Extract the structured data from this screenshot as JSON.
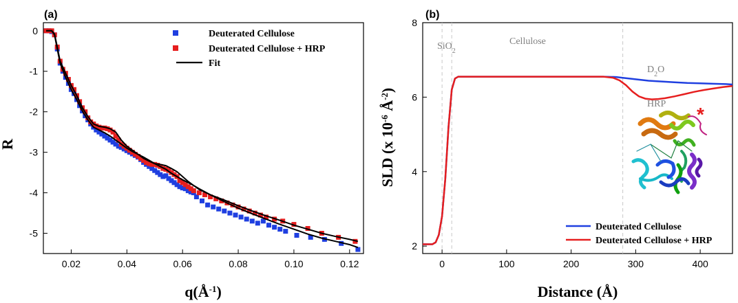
{
  "colors": {
    "blue": "#1f3fe0",
    "red": "#e61e1e",
    "black": "#000000",
    "grey": "#808080"
  },
  "panel_a": {
    "label": "(a)",
    "legend": {
      "series1": "Deuterated Cellulose",
      "series2": "Deuterated Cellulose + HRP",
      "fit": "Fit"
    }
  },
  "panel_b": {
    "label": "(b)",
    "annotations": {
      "sio2": "SiO",
      "sio2_sub": "2",
      "cellulose": "Cellulose",
      "d2o": "D",
      "d2o_sub": "2",
      "d2o_tail": "O",
      "hrp": "HRP",
      "asterisk": "*"
    },
    "legend": {
      "series1": "Deuterated Cellulose",
      "series2": "Deuterated Cellulose + HRP"
    },
    "protein_image": "protein-ribbon-structure"
  },
  "chart_data": [
    {
      "type": "scatter",
      "title": "",
      "xlabel": "q(Å-1)",
      "ylabel": "R",
      "xlim": [
        0.01,
        0.125
      ],
      "ylim": [
        -5.5,
        0.2
      ],
      "xticks": [
        0.02,
        0.04,
        0.06,
        0.08,
        0.1,
        0.12
      ],
      "xtick_labels": [
        "0.02",
        "0.04",
        "0.06",
        "0.08",
        "0.10",
        "0.12"
      ],
      "yticks": [
        0,
        -1,
        -2,
        -3,
        -4,
        -5
      ],
      "legend_position": "top-right",
      "series": [
        {
          "name": "Deuterated Cellulose",
          "marker": "square",
          "x": [
            0.011,
            0.012,
            0.013,
            0.014,
            0.015,
            0.016,
            0.017,
            0.018,
            0.019,
            0.02,
            0.021,
            0.022,
            0.023,
            0.024,
            0.025,
            0.026,
            0.027,
            0.028,
            0.029,
            0.03,
            0.031,
            0.032,
            0.033,
            0.034,
            0.035,
            0.036,
            0.037,
            0.038,
            0.039,
            0.04,
            0.041,
            0.042,
            0.043,
            0.044,
            0.045,
            0.046,
            0.047,
            0.048,
            0.049,
            0.05,
            0.051,
            0.052,
            0.053,
            0.054,
            0.055,
            0.056,
            0.057,
            0.058,
            0.059,
            0.06,
            0.061,
            0.062,
            0.063,
            0.064,
            0.065,
            0.067,
            0.069,
            0.071,
            0.073,
            0.075,
            0.077,
            0.079,
            0.081,
            0.083,
            0.085,
            0.087,
            0.089,
            0.091,
            0.093,
            0.095,
            0.097,
            0.101,
            0.106,
            0.111,
            0.117,
            0.123
          ],
          "y": [
            0.0,
            0.0,
            -0.02,
            -0.1,
            -0.45,
            -0.8,
            -1.0,
            -1.15,
            -1.3,
            -1.45,
            -1.55,
            -1.7,
            -1.85,
            -1.98,
            -2.1,
            -2.2,
            -2.3,
            -2.38,
            -2.45,
            -2.5,
            -2.55,
            -2.6,
            -2.65,
            -2.7,
            -2.75,
            -2.8,
            -2.85,
            -2.88,
            -2.92,
            -2.96,
            -3.0,
            -3.04,
            -3.08,
            -3.12,
            -3.18,
            -3.25,
            -3.3,
            -3.35,
            -3.4,
            -3.45,
            -3.5,
            -3.55,
            -3.6,
            -3.58,
            -3.65,
            -3.7,
            -3.75,
            -3.8,
            -3.85,
            -3.88,
            -3.9,
            -3.95,
            -3.98,
            -4.0,
            -4.1,
            -4.2,
            -4.3,
            -4.35,
            -4.4,
            -4.45,
            -4.5,
            -4.55,
            -4.6,
            -4.65,
            -4.7,
            -4.75,
            -4.7,
            -4.8,
            -4.85,
            -4.9,
            -4.95,
            -5.05,
            -5.1,
            -5.15,
            -5.25,
            -5.4
          ]
        },
        {
          "name": "Deuterated Cellulose + HRP",
          "marker": "square",
          "x": [
            0.011,
            0.012,
            0.013,
            0.014,
            0.015,
            0.016,
            0.017,
            0.018,
            0.019,
            0.02,
            0.021,
            0.022,
            0.023,
            0.024,
            0.025,
            0.026,
            0.027,
            0.028,
            0.029,
            0.03,
            0.031,
            0.032,
            0.033,
            0.034,
            0.035,
            0.036,
            0.037,
            0.038,
            0.039,
            0.04,
            0.041,
            0.042,
            0.043,
            0.044,
            0.045,
            0.046,
            0.047,
            0.048,
            0.049,
            0.05,
            0.051,
            0.052,
            0.053,
            0.054,
            0.055,
            0.056,
            0.057,
            0.058,
            0.059,
            0.06,
            0.061,
            0.062,
            0.063,
            0.064,
            0.066,
            0.068,
            0.07,
            0.072,
            0.074,
            0.076,
            0.078,
            0.08,
            0.082,
            0.084,
            0.086,
            0.088,
            0.09,
            0.093,
            0.096,
            0.1,
            0.105,
            0.11,
            0.116,
            0.122
          ],
          "y": [
            0.0,
            0.0,
            0.0,
            -0.1,
            -0.4,
            -0.75,
            -0.95,
            -1.05,
            -1.2,
            -1.35,
            -1.45,
            -1.6,
            -1.75,
            -1.9,
            -2.0,
            -2.15,
            -2.25,
            -2.3,
            -2.35,
            -2.38,
            -2.4,
            -2.4,
            -2.42,
            -2.45,
            -2.5,
            -2.6,
            -2.7,
            -2.8,
            -2.85,
            -2.9,
            -2.95,
            -3.0,
            -3.05,
            -3.1,
            -3.15,
            -3.2,
            -3.25,
            -3.28,
            -3.3,
            -3.3,
            -3.32,
            -3.35,
            -3.4,
            -3.42,
            -3.45,
            -3.5,
            -3.55,
            -3.6,
            -3.7,
            -3.75,
            -3.8,
            -3.85,
            -3.9,
            -3.95,
            -4.0,
            -4.05,
            -4.1,
            -4.15,
            -4.2,
            -4.25,
            -4.3,
            -4.35,
            -4.4,
            -4.45,
            -4.5,
            -4.55,
            -4.6,
            -4.65,
            -4.7,
            -4.78,
            -4.88,
            -5.0,
            -5.1,
            -5.2
          ]
        },
        {
          "name": "Fit",
          "line": true,
          "x": [
            0.011,
            0.013,
            0.014,
            0.015,
            0.016,
            0.018,
            0.02,
            0.022,
            0.024,
            0.026,
            0.028,
            0.03,
            0.032,
            0.034,
            0.036,
            0.038,
            0.04,
            0.042,
            0.044,
            0.046,
            0.048,
            0.05,
            0.052,
            0.054,
            0.056,
            0.058,
            0.06,
            0.062,
            0.064,
            0.066,
            0.07,
            0.075,
            0.08,
            0.085,
            0.09,
            0.095,
            0.1,
            0.105,
            0.11,
            0.115,
            0.12,
            0.123
          ],
          "y": [
            0.0,
            0.0,
            -0.1,
            -0.45,
            -0.8,
            -1.15,
            -1.45,
            -1.7,
            -1.98,
            -2.2,
            -2.38,
            -2.45,
            -2.52,
            -2.6,
            -2.7,
            -2.8,
            -2.9,
            -2.98,
            -3.05,
            -3.12,
            -3.2,
            -3.28,
            -3.35,
            -3.42,
            -3.52,
            -3.6,
            -3.68,
            -3.75,
            -3.82,
            -3.9,
            -4.05,
            -4.22,
            -4.38,
            -4.52,
            -4.65,
            -4.78,
            -4.9,
            -5.02,
            -5.12,
            -5.2,
            -5.28,
            -5.35
          ]
        },
        {
          "name": "Fit",
          "line": true,
          "x": [
            0.011,
            0.013,
            0.014,
            0.015,
            0.016,
            0.018,
            0.02,
            0.022,
            0.024,
            0.026,
            0.028,
            0.03,
            0.032,
            0.034,
            0.036,
            0.038,
            0.04,
            0.042,
            0.044,
            0.046,
            0.048,
            0.05,
            0.052,
            0.054,
            0.056,
            0.058,
            0.06,
            0.062,
            0.064,
            0.066,
            0.07,
            0.075,
            0.08,
            0.085,
            0.09,
            0.095,
            0.1,
            0.105,
            0.11,
            0.115,
            0.12,
            0.123
          ],
          "y": [
            0.0,
            0.0,
            -0.08,
            -0.4,
            -0.75,
            -1.05,
            -1.35,
            -1.6,
            -1.9,
            -2.12,
            -2.3,
            -2.36,
            -2.38,
            -2.42,
            -2.5,
            -2.7,
            -2.85,
            -2.95,
            -3.05,
            -3.15,
            -3.22,
            -3.28,
            -3.3,
            -3.33,
            -3.4,
            -3.48,
            -3.6,
            -3.72,
            -3.82,
            -3.92,
            -4.05,
            -4.18,
            -4.32,
            -4.45,
            -4.57,
            -4.68,
            -4.8,
            -4.9,
            -5.0,
            -5.08,
            -5.15,
            -5.2
          ]
        }
      ]
    },
    {
      "type": "line",
      "title": "",
      "xlabel": "Distance (Å)",
      "ylabel": "SLD (x 10-6 Å-2)",
      "xlim": [
        -30,
        450
      ],
      "ylim": [
        1.8,
        8.0
      ],
      "xticks": [
        0,
        100,
        200,
        300,
        400
      ],
      "yticks": [
        2,
        4,
        6,
        8
      ],
      "grid": false,
      "legend_position": "bottom-right",
      "vlines": [
        0,
        15,
        280
      ],
      "series": [
        {
          "name": "Deuterated Cellulose",
          "x": [
            -30,
            -15,
            -10,
            -5,
            0,
            5,
            10,
            15,
            20,
            25,
            30,
            40,
            60,
            100,
            150,
            200,
            250,
            270,
            280,
            300,
            320,
            340,
            360,
            380,
            400,
            420,
            440,
            450
          ],
          "y": [
            2.05,
            2.05,
            2.1,
            2.3,
            2.8,
            3.8,
            5.2,
            6.2,
            6.5,
            6.55,
            6.55,
            6.55,
            6.55,
            6.55,
            6.55,
            6.55,
            6.55,
            6.54,
            6.52,
            6.48,
            6.44,
            6.42,
            6.4,
            6.38,
            6.37,
            6.36,
            6.35,
            6.34
          ]
        },
        {
          "name": "Deuterated Cellulose + HRP",
          "x": [
            -30,
            -15,
            -10,
            -5,
            0,
            5,
            10,
            15,
            20,
            25,
            30,
            40,
            60,
            100,
            150,
            200,
            250,
            265,
            275,
            285,
            295,
            305,
            315,
            325,
            335,
            345,
            360,
            375,
            390,
            405,
            420,
            435,
            450
          ],
          "y": [
            2.05,
            2.05,
            2.1,
            2.3,
            2.8,
            3.8,
            5.2,
            6.2,
            6.5,
            6.55,
            6.55,
            6.55,
            6.55,
            6.55,
            6.55,
            6.55,
            6.55,
            6.52,
            6.45,
            6.32,
            6.15,
            6.02,
            5.96,
            5.94,
            5.95,
            5.97,
            6.02,
            6.08,
            6.14,
            6.19,
            6.23,
            6.27,
            6.3
          ]
        }
      ]
    }
  ]
}
